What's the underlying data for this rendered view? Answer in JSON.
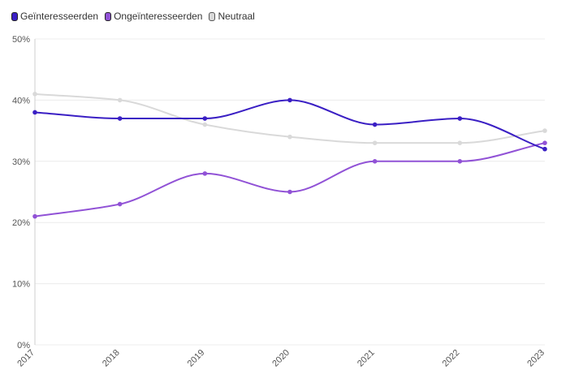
{
  "chart_data": {
    "type": "line",
    "title": "",
    "xlabel": "",
    "ylabel": "",
    "x": [
      "2017",
      "2018",
      "2019",
      "2020",
      "2021",
      "2022",
      "2023"
    ],
    "ylim": [
      0,
      50
    ],
    "yticks": [
      "0%",
      "10%",
      "20%",
      "30%",
      "40%",
      "50%"
    ],
    "ytick_values": [
      0,
      10,
      20,
      30,
      40,
      50
    ],
    "grid": true,
    "legend_position": "top-left",
    "curve": "smooth",
    "series": [
      {
        "name": "Geïnteresseerden",
        "color": "#3a1fc4",
        "values": [
          38,
          37,
          37,
          40,
          36,
          37,
          32
        ]
      },
      {
        "name": "Ongeïnteresseerden",
        "color": "#9152d6",
        "values": [
          21,
          23,
          28,
          25,
          30,
          30,
          33
        ]
      },
      {
        "name": "Neutraal",
        "color": "#d9d9d9",
        "values": [
          41,
          40,
          36,
          34,
          33,
          33,
          35
        ]
      }
    ]
  }
}
